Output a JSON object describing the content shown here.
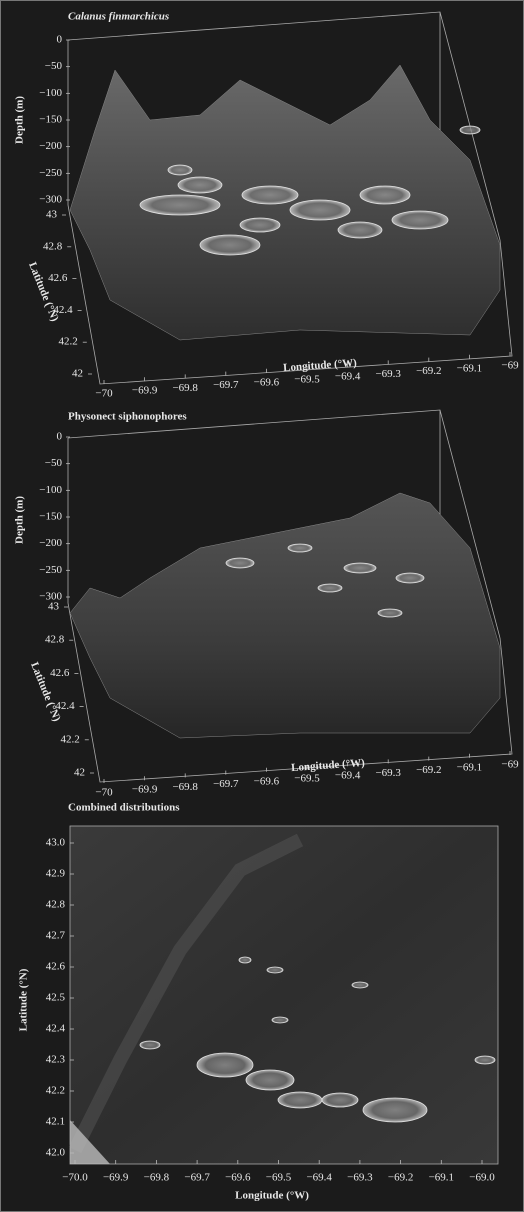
{
  "chart_data": [
    {
      "type": "surface3d",
      "title": "Calanus finmarchicus",
      "xlabel": "Longitude (°W)",
      "ylabel": "Latitude (°N)",
      "zlabel": "Depth (m)",
      "xlim": [
        -70,
        -69
      ],
      "xticks": [
        {
          "value": -70,
          "label": "−70"
        },
        {
          "value": -69.9,
          "label": "−69.9"
        },
        {
          "value": -69.8,
          "label": "−69.8"
        },
        {
          "value": -69.7,
          "label": "−69.7"
        },
        {
          "value": -69.6,
          "label": "−69.6"
        },
        {
          "value": -69.5,
          "label": "−69.5"
        },
        {
          "value": -69.4,
          "label": "−69.4"
        },
        {
          "value": -69.3,
          "label": "−69.3"
        },
        {
          "value": -69.2,
          "label": "−69.2"
        },
        {
          "value": -69.1,
          "label": "−69.1"
        },
        {
          "value": -69,
          "label": "−69"
        }
      ],
      "ylim": [
        42,
        43
      ],
      "yticks": [
        42,
        42.2,
        42.4,
        42.6,
        42.8,
        43
      ],
      "zlim": [
        -300,
        0
      ],
      "zticks": [
        0,
        {
          "value": -50,
          "label": "−50"
        },
        {
          "value": -100,
          "label": "−100"
        },
        {
          "value": -150,
          "label": "−150"
        },
        {
          "value": -200,
          "label": "−200"
        },
        {
          "value": -250,
          "label": "−250"
        },
        {
          "value": -300,
          "label": "−300"
        }
      ]
    },
    {
      "type": "surface3d",
      "title": "Physonect siphonophores",
      "xlabel": "Longitude (°W)",
      "ylabel": "Latitude (°N)",
      "zlabel": "Depth (m)",
      "xlim": [
        -70,
        -69
      ],
      "xticks": [
        {
          "value": -70,
          "label": "−70"
        },
        {
          "value": -69.9,
          "label": "−69.9"
        },
        {
          "value": -69.8,
          "label": "−69.8"
        },
        {
          "value": -69.7,
          "label": "−69.7"
        },
        {
          "value": -69.6,
          "label": "−69.6"
        },
        {
          "value": -69.5,
          "label": "−69.5"
        },
        {
          "value": -69.4,
          "label": "−69.4"
        },
        {
          "value": -69.3,
          "label": "−69.3"
        },
        {
          "value": -69.2,
          "label": "−69.2"
        },
        {
          "value": -69.1,
          "label": "−69.1"
        },
        {
          "value": -69,
          "label": "−69"
        }
      ],
      "ylim": [
        42,
        43
      ],
      "yticks": [
        42,
        42.2,
        42.4,
        42.6,
        42.8,
        43
      ],
      "zlim": [
        -300,
        0
      ],
      "zticks": [
        0,
        {
          "value": -50,
          "label": "−50"
        },
        {
          "value": -100,
          "label": "−100"
        },
        {
          "value": -150,
          "label": "−150"
        },
        {
          "value": -200,
          "label": "−200"
        },
        {
          "value": -250,
          "label": "−250"
        },
        {
          "value": -300,
          "label": "−300"
        }
      ]
    },
    {
      "type": "map",
      "title": "Combined distributions",
      "xlabel": "Longitude (°W)",
      "ylabel": "Latitude (°N)",
      "xlim": [
        -70,
        -69
      ],
      "xticks": [
        {
          "value": -70,
          "label": "−70.0"
        },
        {
          "value": -69.9,
          "label": "−69.9"
        },
        {
          "value": -69.8,
          "label": "−69.8"
        },
        {
          "value": -69.7,
          "label": "−69.7"
        },
        {
          "value": -69.6,
          "label": "−69.6"
        },
        {
          "value": -69.5,
          "label": "−69.5"
        },
        {
          "value": -69.4,
          "label": "−69.4"
        },
        {
          "value": -69.3,
          "label": "−69.3"
        },
        {
          "value": -69.2,
          "label": "−69.2"
        },
        {
          "value": -69.1,
          "label": "−69.1"
        },
        {
          "value": -69,
          "label": "−69.0"
        }
      ],
      "ylim": [
        42,
        43
      ],
      "yticks": [
        {
          "value": 42,
          "label": "42.0"
        },
        42.1,
        42.2,
        42.3,
        42.4,
        42.5,
        42.6,
        42.7,
        42.8,
        42.9,
        {
          "value": 43,
          "label": "43.0"
        }
      ]
    }
  ]
}
